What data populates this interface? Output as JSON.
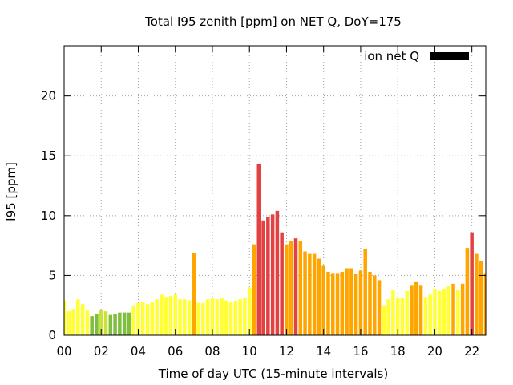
{
  "chart_data": {
    "type": "bar",
    "title": "Total I95 zenith [ppm] on NET Q, DoY=175",
    "xlabel": "Time of day UTC (15-minute intervals)",
    "ylabel": "I95 [ppm]",
    "xlim": [
      0,
      22.75
    ],
    "ylim": [
      0,
      24.2
    ],
    "x_ticks": [
      0,
      2,
      4,
      6,
      8,
      10,
      12,
      14,
      16,
      18,
      20,
      22
    ],
    "x_tick_labels": [
      "00",
      "02",
      "04",
      "06",
      "08",
      "10",
      "12",
      "14",
      "16",
      "18",
      "20",
      "22"
    ],
    "y_ticks": [
      0,
      5,
      10,
      15,
      20
    ],
    "y_tick_labels": [
      "0",
      "5",
      "10",
      "15",
      "20"
    ],
    "grid": true,
    "legend": {
      "position": "top-right",
      "entries": [
        {
          "label": "ion net Q",
          "color": "#000000"
        }
      ]
    },
    "interval_hours": 0.25,
    "x_start": 0.0,
    "values": [
      2.9,
      2.0,
      2.2,
      3.0,
      2.6,
      2.1,
      1.6,
      1.8,
      2.1,
      2.0,
      1.7,
      1.8,
      1.9,
      1.9,
      1.9,
      2.5,
      2.7,
      2.8,
      2.6,
      2.8,
      3.0,
      3.4,
      3.2,
      3.3,
      3.4,
      3.0,
      3.0,
      2.9,
      6.9,
      2.7,
      2.7,
      3.0,
      3.1,
      3.0,
      3.1,
      2.9,
      2.8,
      2.9,
      3.0,
      3.1,
      4.0,
      7.6,
      14.3,
      9.6,
      9.9,
      10.1,
      10.4,
      8.6,
      7.6,
      7.9,
      8.1,
      7.9,
      7.0,
      6.8,
      6.8,
      6.4,
      5.8,
      5.3,
      5.2,
      5.2,
      5.3,
      5.6,
      5.6,
      5.1,
      5.4,
      7.2,
      5.3,
      5.0,
      4.6,
      2.5,
      3.0,
      3.8,
      3.1,
      3.1,
      3.7,
      4.2,
      4.5,
      4.2,
      3.2,
      3.4,
      3.9,
      3.7,
      3.9,
      4.1,
      4.3,
      3.8,
      4.3,
      7.3,
      8.6,
      6.8,
      6.2,
      5.2
    ],
    "colors": {
      "yellow": "#ffff33",
      "light_green": "#c9e23a",
      "green": "#7fbf3f",
      "orange": "#ffa500",
      "red": "#e34242",
      "axis": "#000000",
      "grid": "#a0a0a0"
    },
    "color_per_bar": [
      "yellow",
      "yellow",
      "yellow",
      "yellow",
      "yellow",
      "yellow",
      "green",
      "green",
      "light_green",
      "light_green",
      "green",
      "green",
      "green",
      "green",
      "green",
      "yellow",
      "yellow",
      "yellow",
      "yellow",
      "yellow",
      "yellow",
      "yellow",
      "yellow",
      "yellow",
      "yellow",
      "yellow",
      "yellow",
      "yellow",
      "orange",
      "yellow",
      "yellow",
      "yellow",
      "yellow",
      "yellow",
      "yellow",
      "yellow",
      "yellow",
      "yellow",
      "yellow",
      "yellow",
      "yellow",
      "orange",
      "red",
      "red",
      "red",
      "red",
      "red",
      "red",
      "orange",
      "orange",
      "red",
      "orange",
      "orange",
      "orange",
      "orange",
      "orange",
      "orange",
      "orange",
      "orange",
      "orange",
      "orange",
      "orange",
      "orange",
      "orange",
      "orange",
      "orange",
      "orange",
      "orange",
      "orange",
      "yellow",
      "yellow",
      "yellow",
      "yellow",
      "yellow",
      "yellow",
      "orange",
      "orange",
      "orange",
      "yellow",
      "yellow",
      "yellow",
      "yellow",
      "yellow",
      "yellow",
      "orange",
      "yellow",
      "orange",
      "orange",
      "red",
      "orange",
      "orange",
      "orange"
    ]
  }
}
